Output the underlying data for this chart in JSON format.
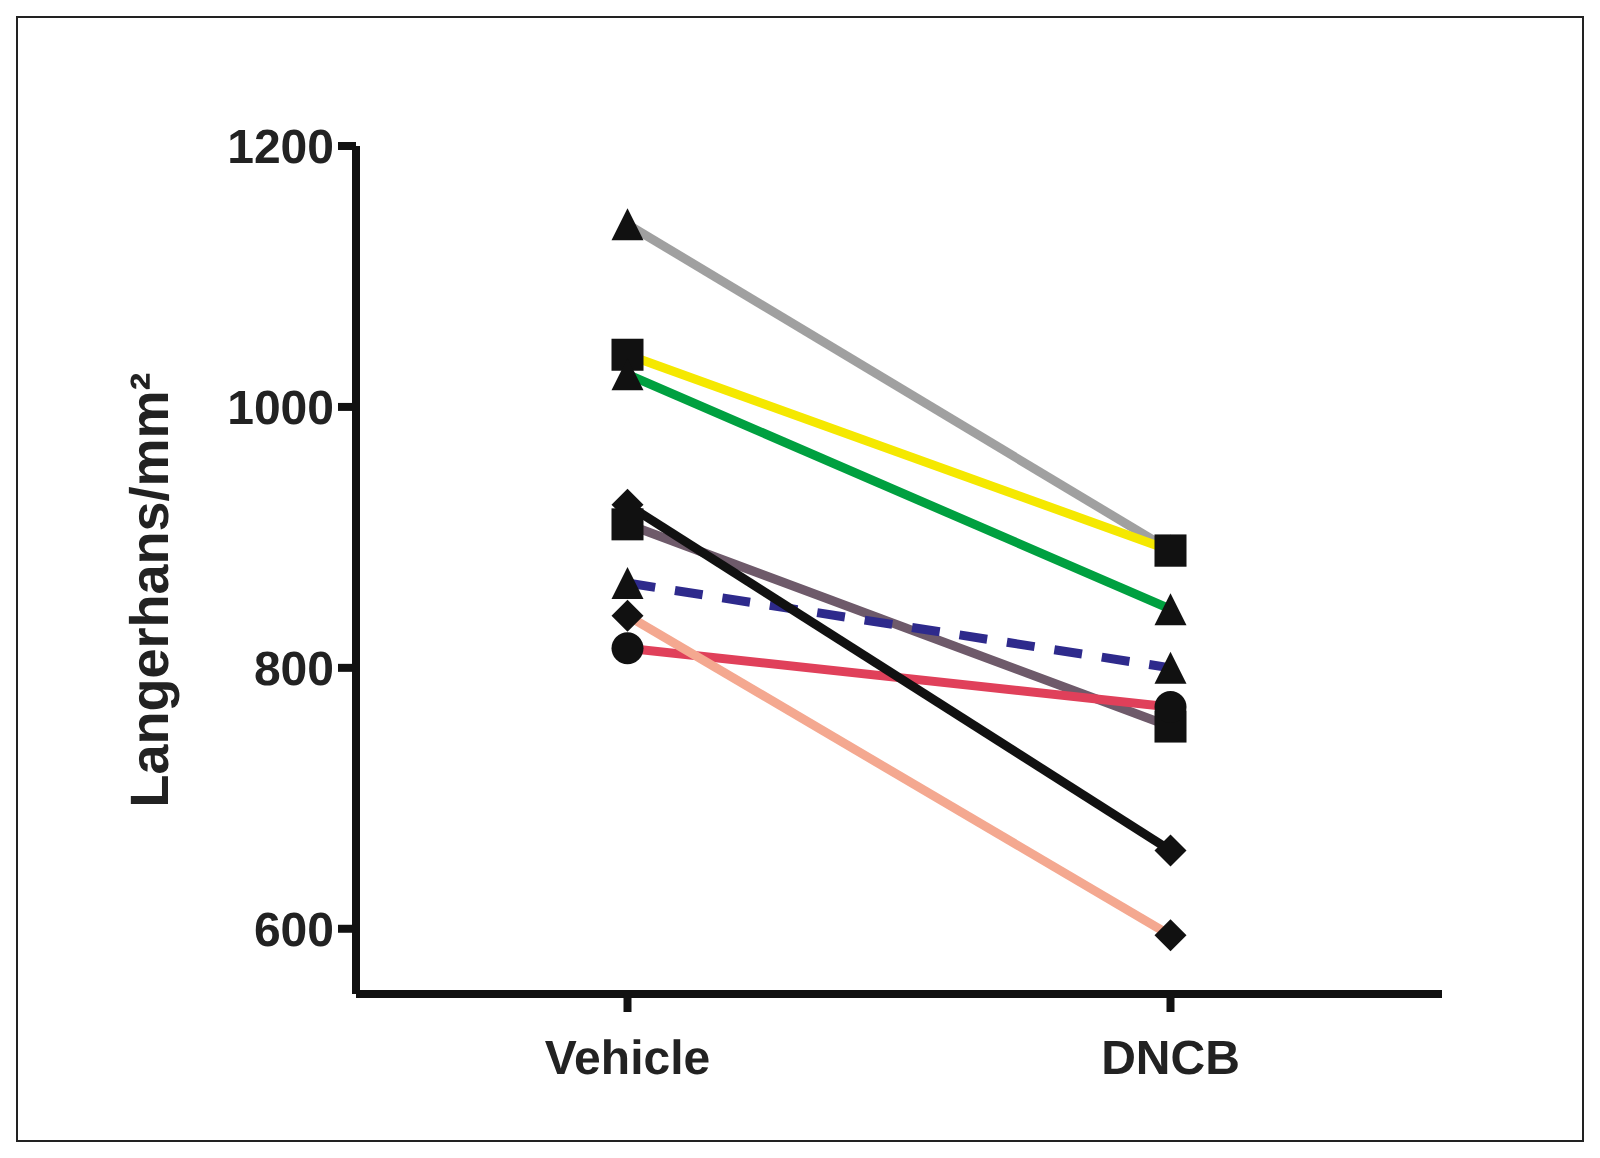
{
  "chart_data": {
    "type": "line",
    "ylabel": "Langerhans/mm²",
    "categories": [
      "Vehicle",
      "DNCB"
    ],
    "ylim": [
      550,
      1200
    ],
    "yticks": [
      600,
      800,
      1000,
      1200
    ],
    "grid": false,
    "legend": false,
    "series": [
      {
        "color": "#a0a0a0",
        "values": [
          1140,
          890
        ],
        "marker": "triangle"
      },
      {
        "color": "#f5e800",
        "values": [
          1040,
          890
        ],
        "marker": "square"
      },
      {
        "color": "#00a040",
        "values": [
          1025,
          845
        ],
        "marker": "triangle"
      },
      {
        "color": "#6e5a6a",
        "values": [
          910,
          755
        ],
        "marker": "square"
      },
      {
        "color": "#2e2a8c",
        "values": [
          865,
          800
        ],
        "marker": "triangle",
        "line_style": "dashed"
      },
      {
        "color": "#e0405a",
        "values": [
          815,
          770
        ],
        "marker": "circle"
      },
      {
        "color": "#f4a890",
        "values": [
          840,
          595
        ],
        "marker": "diamond"
      },
      {
        "color": "#111111",
        "values": [
          925,
          660
        ],
        "marker": "diamond"
      }
    ]
  }
}
